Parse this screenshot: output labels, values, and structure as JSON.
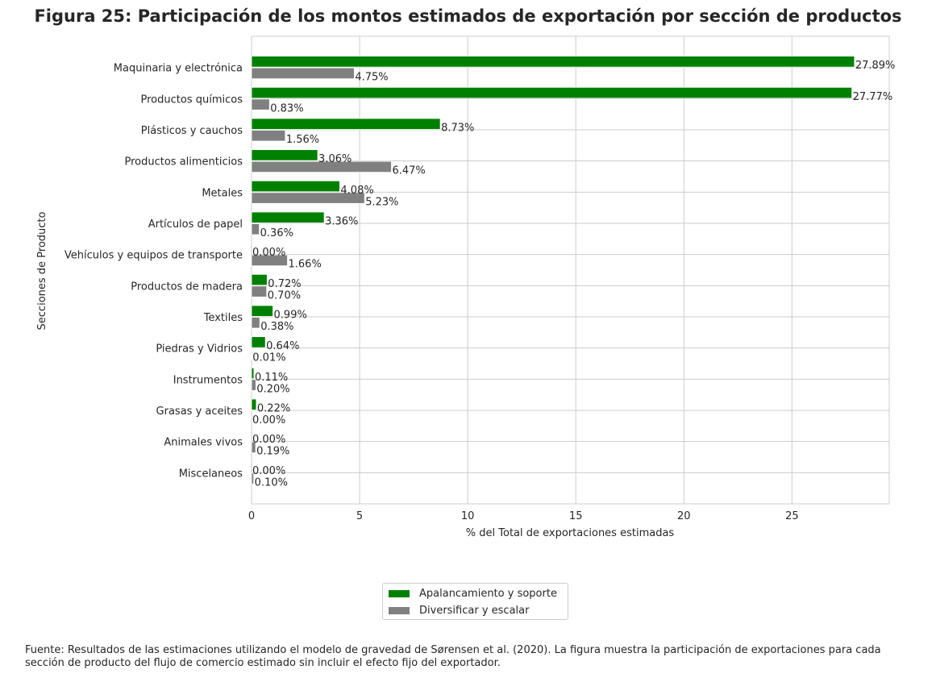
{
  "chart_data": {
    "type": "bar",
    "orientation": "horizontal",
    "title": "Figura 25: Participación de los montos estimados de exportación por sección de productos",
    "xlabel": "% del Total de exportaciones estimadas",
    "ylabel": "Secciones de Producto",
    "xlim": [
      0,
      29.5
    ],
    "xticks": [
      "0",
      "5",
      "10",
      "15",
      "20",
      "25"
    ],
    "grid": true,
    "legend_position": "bottom-center",
    "categories": [
      "Maquinaria y electrónica",
      "Productos químicos",
      "Plásticos y cauchos",
      "Productos alimenticios",
      "Metales",
      "Artículos de papel",
      "Vehículos y equipos de transporte",
      "Productos de madera",
      "Textiles",
      "Piedras y Vidrios",
      "Instrumentos",
      "Grasas y aceites",
      "Animales vivos",
      "Miscelaneos"
    ],
    "series": [
      {
        "name": "Apalancamiento y soporte",
        "color": "#008000",
        "values": [
          27.89,
          27.77,
          8.73,
          3.06,
          4.08,
          3.36,
          0.0,
          0.72,
          0.99,
          0.64,
          0.11,
          0.22,
          0.0,
          0.0
        ],
        "labels": [
          "27.89%",
          "27.77%",
          "8.73%",
          "3.06%",
          "4.08%",
          "3.36%",
          "0.00%",
          "0.72%",
          "0.99%",
          "0.64%",
          "0.11%",
          "0.22%",
          "0.00%",
          "0.00%"
        ]
      },
      {
        "name": "Diversificar y escalar",
        "color": "#808080",
        "values": [
          4.75,
          0.83,
          1.56,
          6.47,
          5.23,
          0.36,
          1.66,
          0.7,
          0.38,
          0.01,
          0.2,
          0.0,
          0.19,
          0.1
        ],
        "labels": [
          "4.75%",
          "0.83%",
          "1.56%",
          "6.47%",
          "5.23%",
          "0.36%",
          "1.66%",
          "0.70%",
          "0.38%",
          "0.01%",
          "0.20%",
          "0.00%",
          "0.19%",
          "0.10%"
        ]
      }
    ]
  },
  "footnote": "Fuente: Resultados de las estimaciones utilizando el modelo de gravedad de Sørensen et al. (2020). La figura muestra la participación de exportaciones para cada sección de producto del flujo de comercio estimado sin incluir el efecto fijo del exportador."
}
